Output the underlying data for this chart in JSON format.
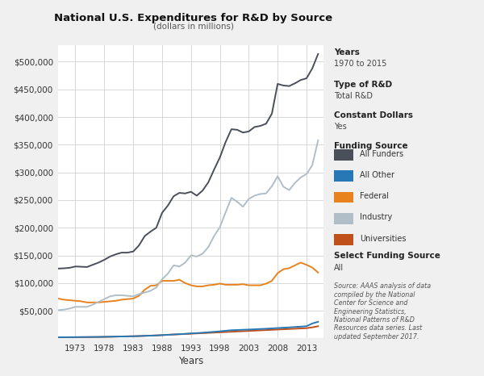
{
  "title": "National U.S. Expenditures for R&D by Source",
  "subtitle": "(dollars in millions)",
  "xlabel": "Years",
  "years": [
    1970,
    1971,
    1972,
    1973,
    1974,
    1975,
    1976,
    1977,
    1978,
    1979,
    1980,
    1981,
    1982,
    1983,
    1984,
    1985,
    1986,
    1987,
    1988,
    1989,
    1990,
    1991,
    1992,
    1993,
    1994,
    1995,
    1996,
    1997,
    1998,
    1999,
    2000,
    2001,
    2002,
    2003,
    2004,
    2005,
    2006,
    2007,
    2008,
    2009,
    2010,
    2011,
    2012,
    2013,
    2014,
    2015
  ],
  "all_funders": [
    126183,
    126700,
    127600,
    130000,
    129500,
    129000,
    133000,
    137000,
    142000,
    148000,
    152000,
    155000,
    155000,
    157000,
    168000,
    185000,
    193000,
    200000,
    227000,
    240000,
    257000,
    263000,
    262000,
    265000,
    258000,
    267000,
    282000,
    305000,
    327000,
    355000,
    378000,
    377000,
    372000,
    374000,
    382000,
    384000,
    388000,
    406000,
    460000,
    457000,
    456000,
    461000,
    467000,
    470000,
    488000,
    514000
  ],
  "all_other": [
    2000,
    2100,
    2200,
    2300,
    2400,
    2500,
    2600,
    2700,
    2900,
    3100,
    3300,
    3500,
    3700,
    3900,
    4200,
    4600,
    5000,
    5400,
    5900,
    6500,
    7100,
    7700,
    8300,
    9000,
    9600,
    10300,
    11100,
    11900,
    12800,
    13800,
    14800,
    15200,
    15600,
    16000,
    16500,
    17000,
    17500,
    18100,
    18700,
    19300,
    19900,
    20600,
    21300,
    22000,
    27000,
    30000
  ],
  "federal": [
    72000,
    70000,
    69000,
    68000,
    67000,
    65000,
    65000,
    65000,
    66000,
    67000,
    68000,
    70000,
    71000,
    72000,
    77000,
    88000,
    95000,
    96000,
    104000,
    104000,
    104000,
    106000,
    100000,
    96000,
    94000,
    94000,
    96000,
    97000,
    99000,
    97000,
    97000,
    97000,
    98000,
    96000,
    96000,
    96000,
    99000,
    104000,
    118000,
    125000,
    127000,
    132000,
    137000,
    133000,
    128000,
    119000
  ],
  "industry": [
    51000,
    52000,
    54000,
    57000,
    57000,
    57000,
    61000,
    66000,
    71000,
    76000,
    78000,
    78000,
    77000,
    76000,
    80000,
    83000,
    86000,
    92000,
    107000,
    117000,
    132000,
    130000,
    137000,
    150000,
    148000,
    153000,
    165000,
    185000,
    201000,
    228000,
    254000,
    247000,
    238000,
    252000,
    258000,
    261000,
    262000,
    275000,
    293000,
    274000,
    268000,
    281000,
    291000,
    297000,
    313000,
    358000
  ],
  "universities": [
    1800,
    1900,
    2000,
    2100,
    2200,
    2300,
    2400,
    2500,
    2700,
    2900,
    3200,
    3500,
    3700,
    3900,
    4200,
    4600,
    5000,
    5400,
    5900,
    6500,
    7000,
    7500,
    8000,
    8500,
    9000,
    9500,
    10000,
    10500,
    11000,
    11500,
    12000,
    12500,
    13000,
    13500,
    14000,
    14500,
    15000,
    15500,
    16000,
    16500,
    17000,
    17500,
    18000,
    18500,
    20000,
    22000
  ],
  "colors": {
    "all_funders": "#4a4f5a",
    "all_other": "#2878b5",
    "federal": "#e8821e",
    "industry": "#b0bec8",
    "universities": "#c0501a"
  },
  "xticks": [
    1973,
    1978,
    1983,
    1988,
    1993,
    1998,
    2003,
    2008,
    2013
  ],
  "yticks": [
    50000,
    100000,
    150000,
    200000,
    250000,
    300000,
    350000,
    400000,
    450000,
    500000
  ],
  "ylim": [
    0,
    530000
  ],
  "xlim": [
    1970,
    2016
  ],
  "background_color": "#f0f0f0",
  "plot_bg_color": "#ffffff",
  "grid_color": "#d8d8d8",
  "source_text": "Source: AAAS analysis of data\ncompiled by the National\nCenter for Science and\nEngineering Statistics,\nNational Patterns of R&D\nResources data series. Last\nupdated September 2017."
}
